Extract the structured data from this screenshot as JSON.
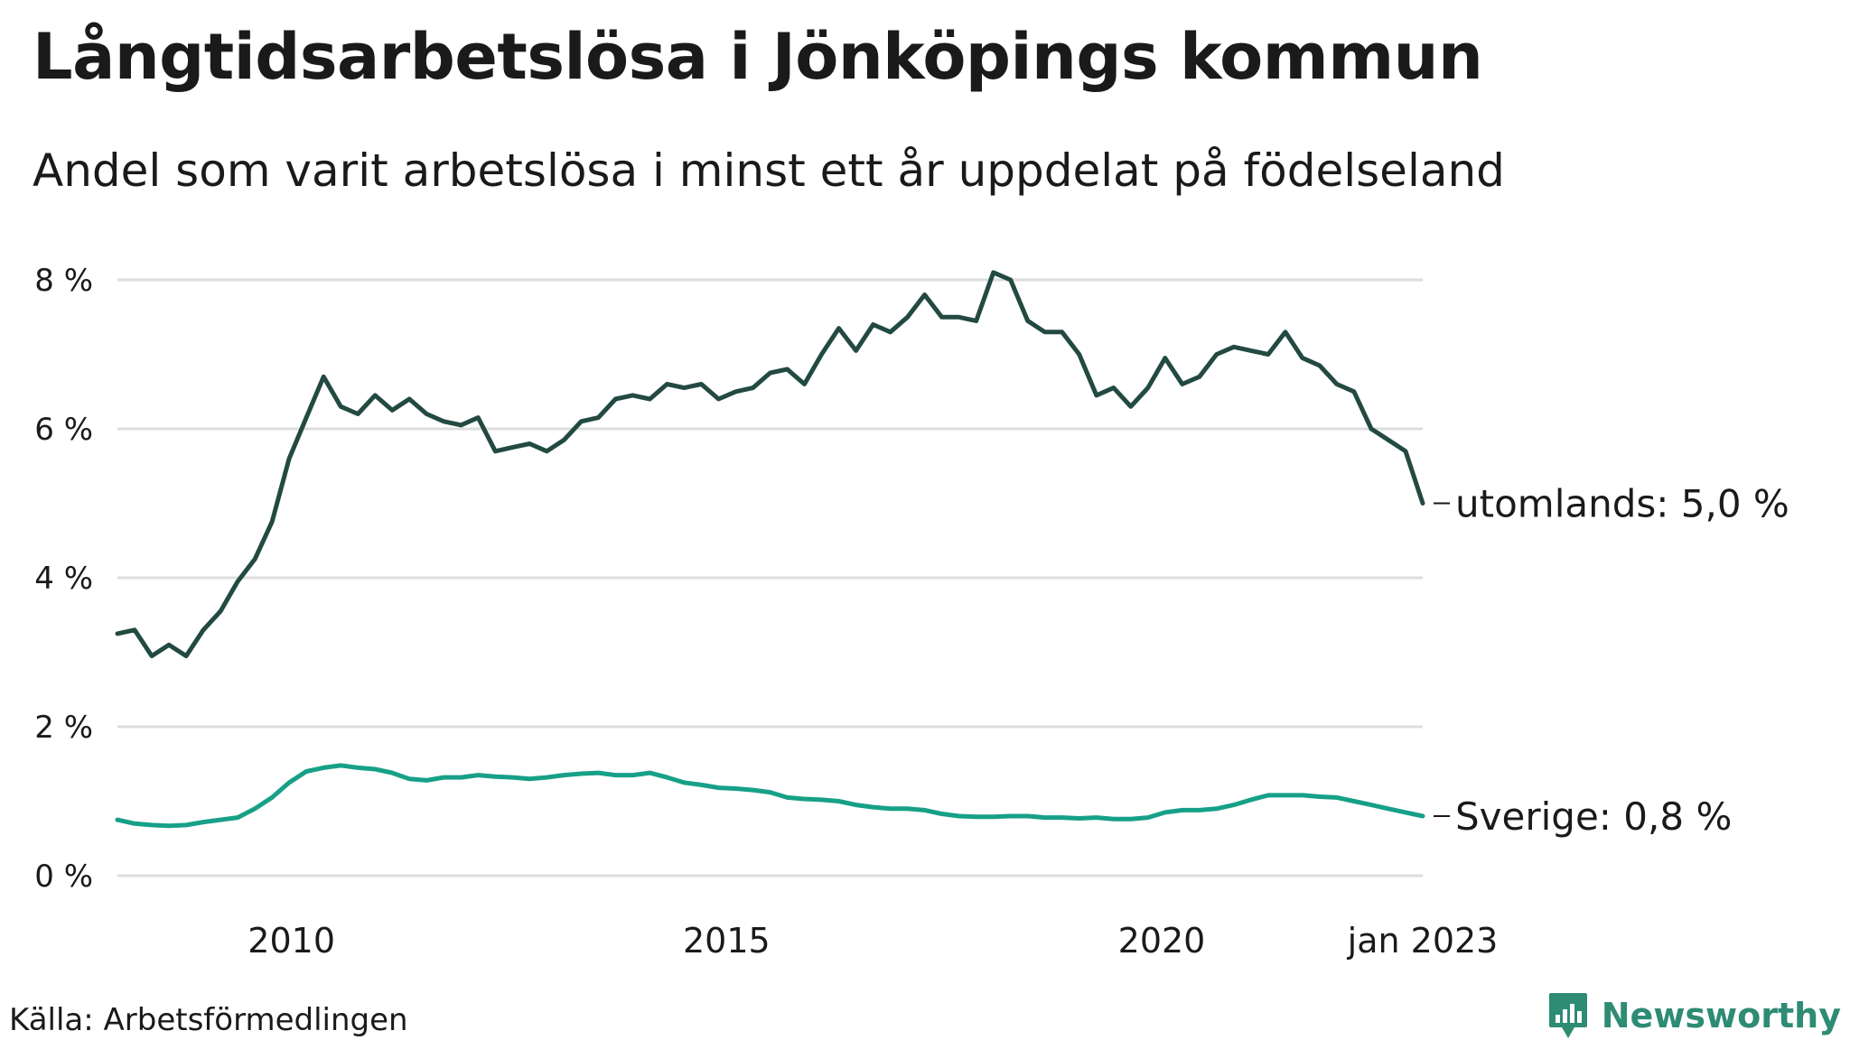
{
  "title": "Långtidsarbetslösa i Jönköpings kommun",
  "subtitle": "Andel som varit arbetslösa i minst ett år uppdelat på födelseland",
  "source": "Källa: Arbetsförmedlingen",
  "brand": "Newsworthy",
  "colors": {
    "utomlands": "#234a42",
    "sverige": "#17a088",
    "grid": "#dddddd",
    "brand": "#2e8b74"
  },
  "chart_data": {
    "type": "line",
    "title": "Långtidsarbetslösa i Jönköpings kommun",
    "subtitle": "Andel som varit arbetslösa i minst ett år uppdelat på födelseland",
    "x_start": "2008-01",
    "x_end": "2023-01",
    "x_step": "quarter",
    "xticks": [
      {
        "label": "2010",
        "value": "2010-01"
      },
      {
        "label": "2015",
        "value": "2015-01"
      },
      {
        "label": "2020",
        "value": "2020-01"
      },
      {
        "label": "jan 2023",
        "value": "2023-01"
      }
    ],
    "yticks": [
      {
        "label": "0 %",
        "value": 0
      },
      {
        "label": "2 %",
        "value": 2
      },
      {
        "label": "4 %",
        "value": 4
      },
      {
        "label": "6 %",
        "value": 6
      },
      {
        "label": "8 %",
        "value": 8
      }
    ],
    "ylim": [
      0,
      8
    ],
    "grid": true,
    "series": [
      {
        "name": "utomlands",
        "end_label": "utomlands: 5,0 %",
        "values": [
          3.25,
          3.3,
          2.95,
          3.1,
          2.95,
          3.3,
          3.55,
          3.95,
          4.25,
          4.75,
          5.6,
          6.15,
          6.7,
          6.3,
          6.2,
          6.45,
          6.25,
          6.4,
          6.2,
          6.1,
          6.05,
          6.15,
          5.7,
          5.75,
          5.8,
          5.7,
          5.85,
          6.1,
          6.15,
          6.4,
          6.45,
          6.4,
          6.6,
          6.55,
          6.6,
          6.4,
          6.5,
          6.55,
          6.75,
          6.8,
          6.6,
          7.0,
          7.35,
          7.05,
          7.4,
          7.3,
          7.5,
          7.8,
          7.5,
          7.5,
          7.45,
          8.1,
          8.0,
          7.45,
          7.3,
          7.3,
          7.0,
          6.45,
          6.55,
          6.3,
          6.55,
          6.95,
          6.6,
          6.7,
          7.0,
          7.1,
          7.05,
          7.0,
          7.3,
          6.95,
          6.85,
          6.6,
          6.5,
          6.0,
          5.85,
          5.7,
          5.0
        ]
      },
      {
        "name": "Sverige",
        "end_label": "Sverige: 0,8 %",
        "values": [
          0.75,
          0.7,
          0.68,
          0.67,
          0.68,
          0.72,
          0.75,
          0.78,
          0.9,
          1.05,
          1.25,
          1.4,
          1.45,
          1.48,
          1.45,
          1.43,
          1.38,
          1.3,
          1.28,
          1.32,
          1.32,
          1.35,
          1.33,
          1.32,
          1.3,
          1.32,
          1.35,
          1.37,
          1.38,
          1.35,
          1.35,
          1.38,
          1.32,
          1.25,
          1.22,
          1.18,
          1.17,
          1.15,
          1.12,
          1.05,
          1.03,
          1.02,
          1.0,
          0.95,
          0.92,
          0.9,
          0.9,
          0.88,
          0.83,
          0.8,
          0.79,
          0.79,
          0.8,
          0.8,
          0.78,
          0.78,
          0.77,
          0.78,
          0.76,
          0.76,
          0.78,
          0.85,
          0.88,
          0.88,
          0.9,
          0.95,
          1.02,
          1.08,
          1.08,
          1.08,
          1.06,
          1.05,
          1.0,
          0.95,
          0.9,
          0.85,
          0.8
        ]
      }
    ]
  }
}
